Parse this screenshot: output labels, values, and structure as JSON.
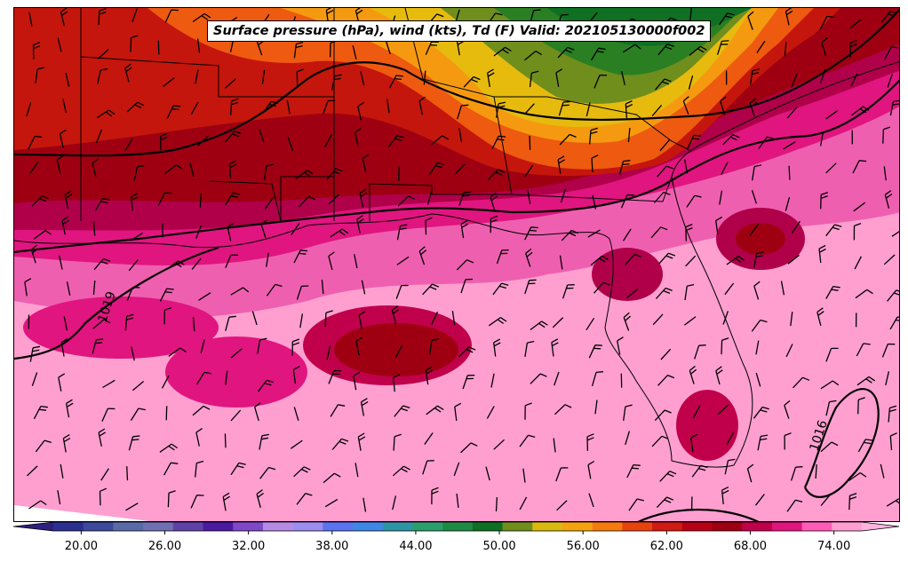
{
  "title": "Surface pressure (hPa), wind (kts), Td (F) Valid: 202105130000f002",
  "isobars": [
    {
      "label": "1019"
    },
    {
      "label": "1016"
    }
  ],
  "colorbar": {
    "min": 18,
    "max": 76,
    "step": 2,
    "extend": "both",
    "tick_labels": [
      "20.00",
      "26.00",
      "32.00",
      "38.00",
      "44.00",
      "50.00",
      "56.00",
      "62.00",
      "68.00",
      "74.00"
    ],
    "colors": [
      "#2b2f8f",
      "#3d4a9c",
      "#5a6aa8",
      "#6f6fb3",
      "#5f42a8",
      "#4a1aa0",
      "#7e48c8",
      "#b78ae6",
      "#9b8ef0",
      "#5a73f0",
      "#3f87e6",
      "#2f94a6",
      "#2c9e6e",
      "#1f8a45",
      "#0f6f22",
      "#6f8e1c",
      "#d9b90e",
      "#f4a40e",
      "#f57b0e",
      "#e6430e",
      "#d01a12",
      "#b80014",
      "#9e0012",
      "#c0004a",
      "#e0157f",
      "#ff5cb8",
      "#ff9fd0"
    ],
    "under_color": "#2b1f7f",
    "over_color": "#ffb3dd"
  },
  "colors": {
    "gulf_pink": "#ff9fd0",
    "magenta": "#e0157f",
    "deep_magenta": "#b0004a",
    "dark_red": "#9e0012",
    "red": "#cc1a0c",
    "orange": "#f07010",
    "yellow": "#e8b80e",
    "olive": "#6f8e1c",
    "green": "#1a7a2a"
  }
}
